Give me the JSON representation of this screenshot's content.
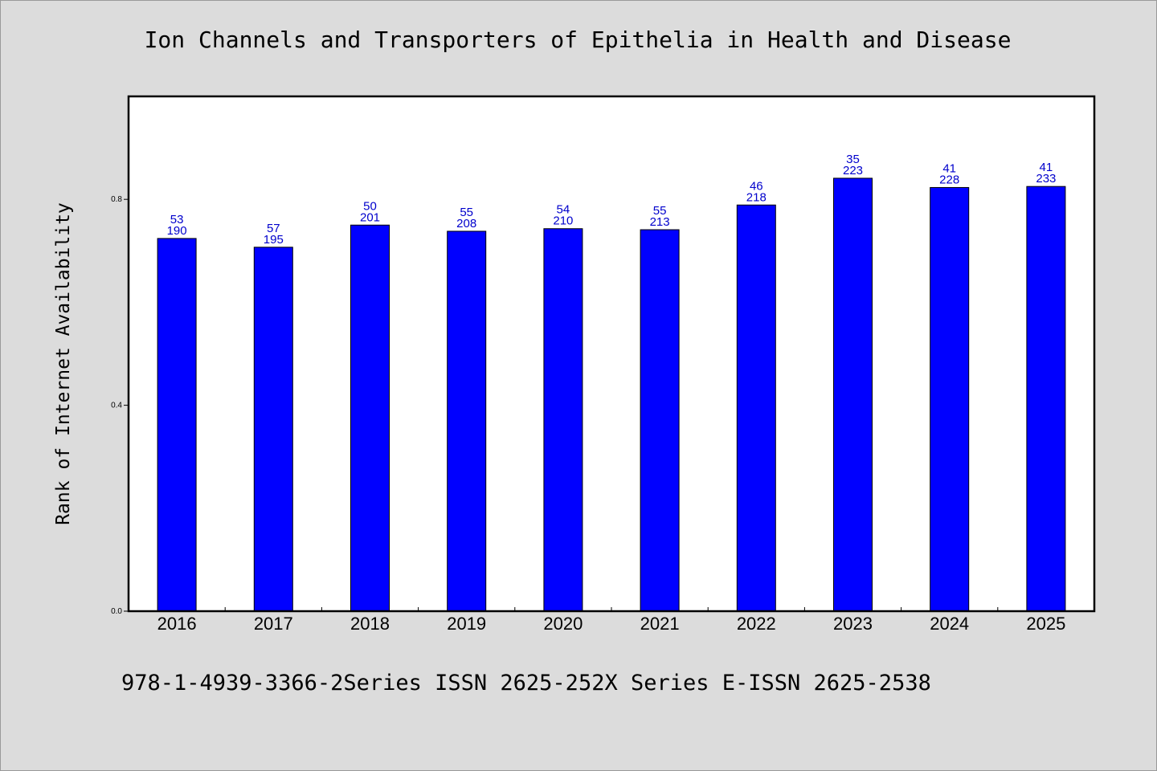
{
  "chart_data": {
    "type": "bar",
    "title": "Ion Channels and Transporters of Epithelia in Health and Disease",
    "xlabel": "",
    "ylabel": "Rank of Internet Availability",
    "categories": [
      "2016",
      "2017",
      "2018",
      "2019",
      "2020",
      "2021",
      "2022",
      "2023",
      "2024",
      "2025"
    ],
    "values": [
      0.724,
      0.707,
      0.75,
      0.738,
      0.743,
      0.741,
      0.789,
      0.841,
      0.823,
      0.825
    ],
    "bar_labels_top": [
      "53",
      "57",
      "50",
      "55",
      "54",
      "55",
      "46",
      "35",
      "41",
      "41"
    ],
    "bar_labels_bottom": [
      "190",
      "195",
      "201",
      "208",
      "210",
      "213",
      "218",
      "223",
      "228",
      "233"
    ],
    "ylim": [
      0,
      1.0
    ],
    "yticks": [
      0.0,
      0.4,
      0.8
    ],
    "ytick_labels": [
      "0.0",
      "0.4",
      "0.8"
    ],
    "grid": false,
    "bar_color": "#0000ff",
    "label_color": "#0000cc"
  },
  "footer": {
    "text": "978-1-4939-3366-2Series ISSN 2625-252X Series E-ISSN 2625-2538"
  }
}
